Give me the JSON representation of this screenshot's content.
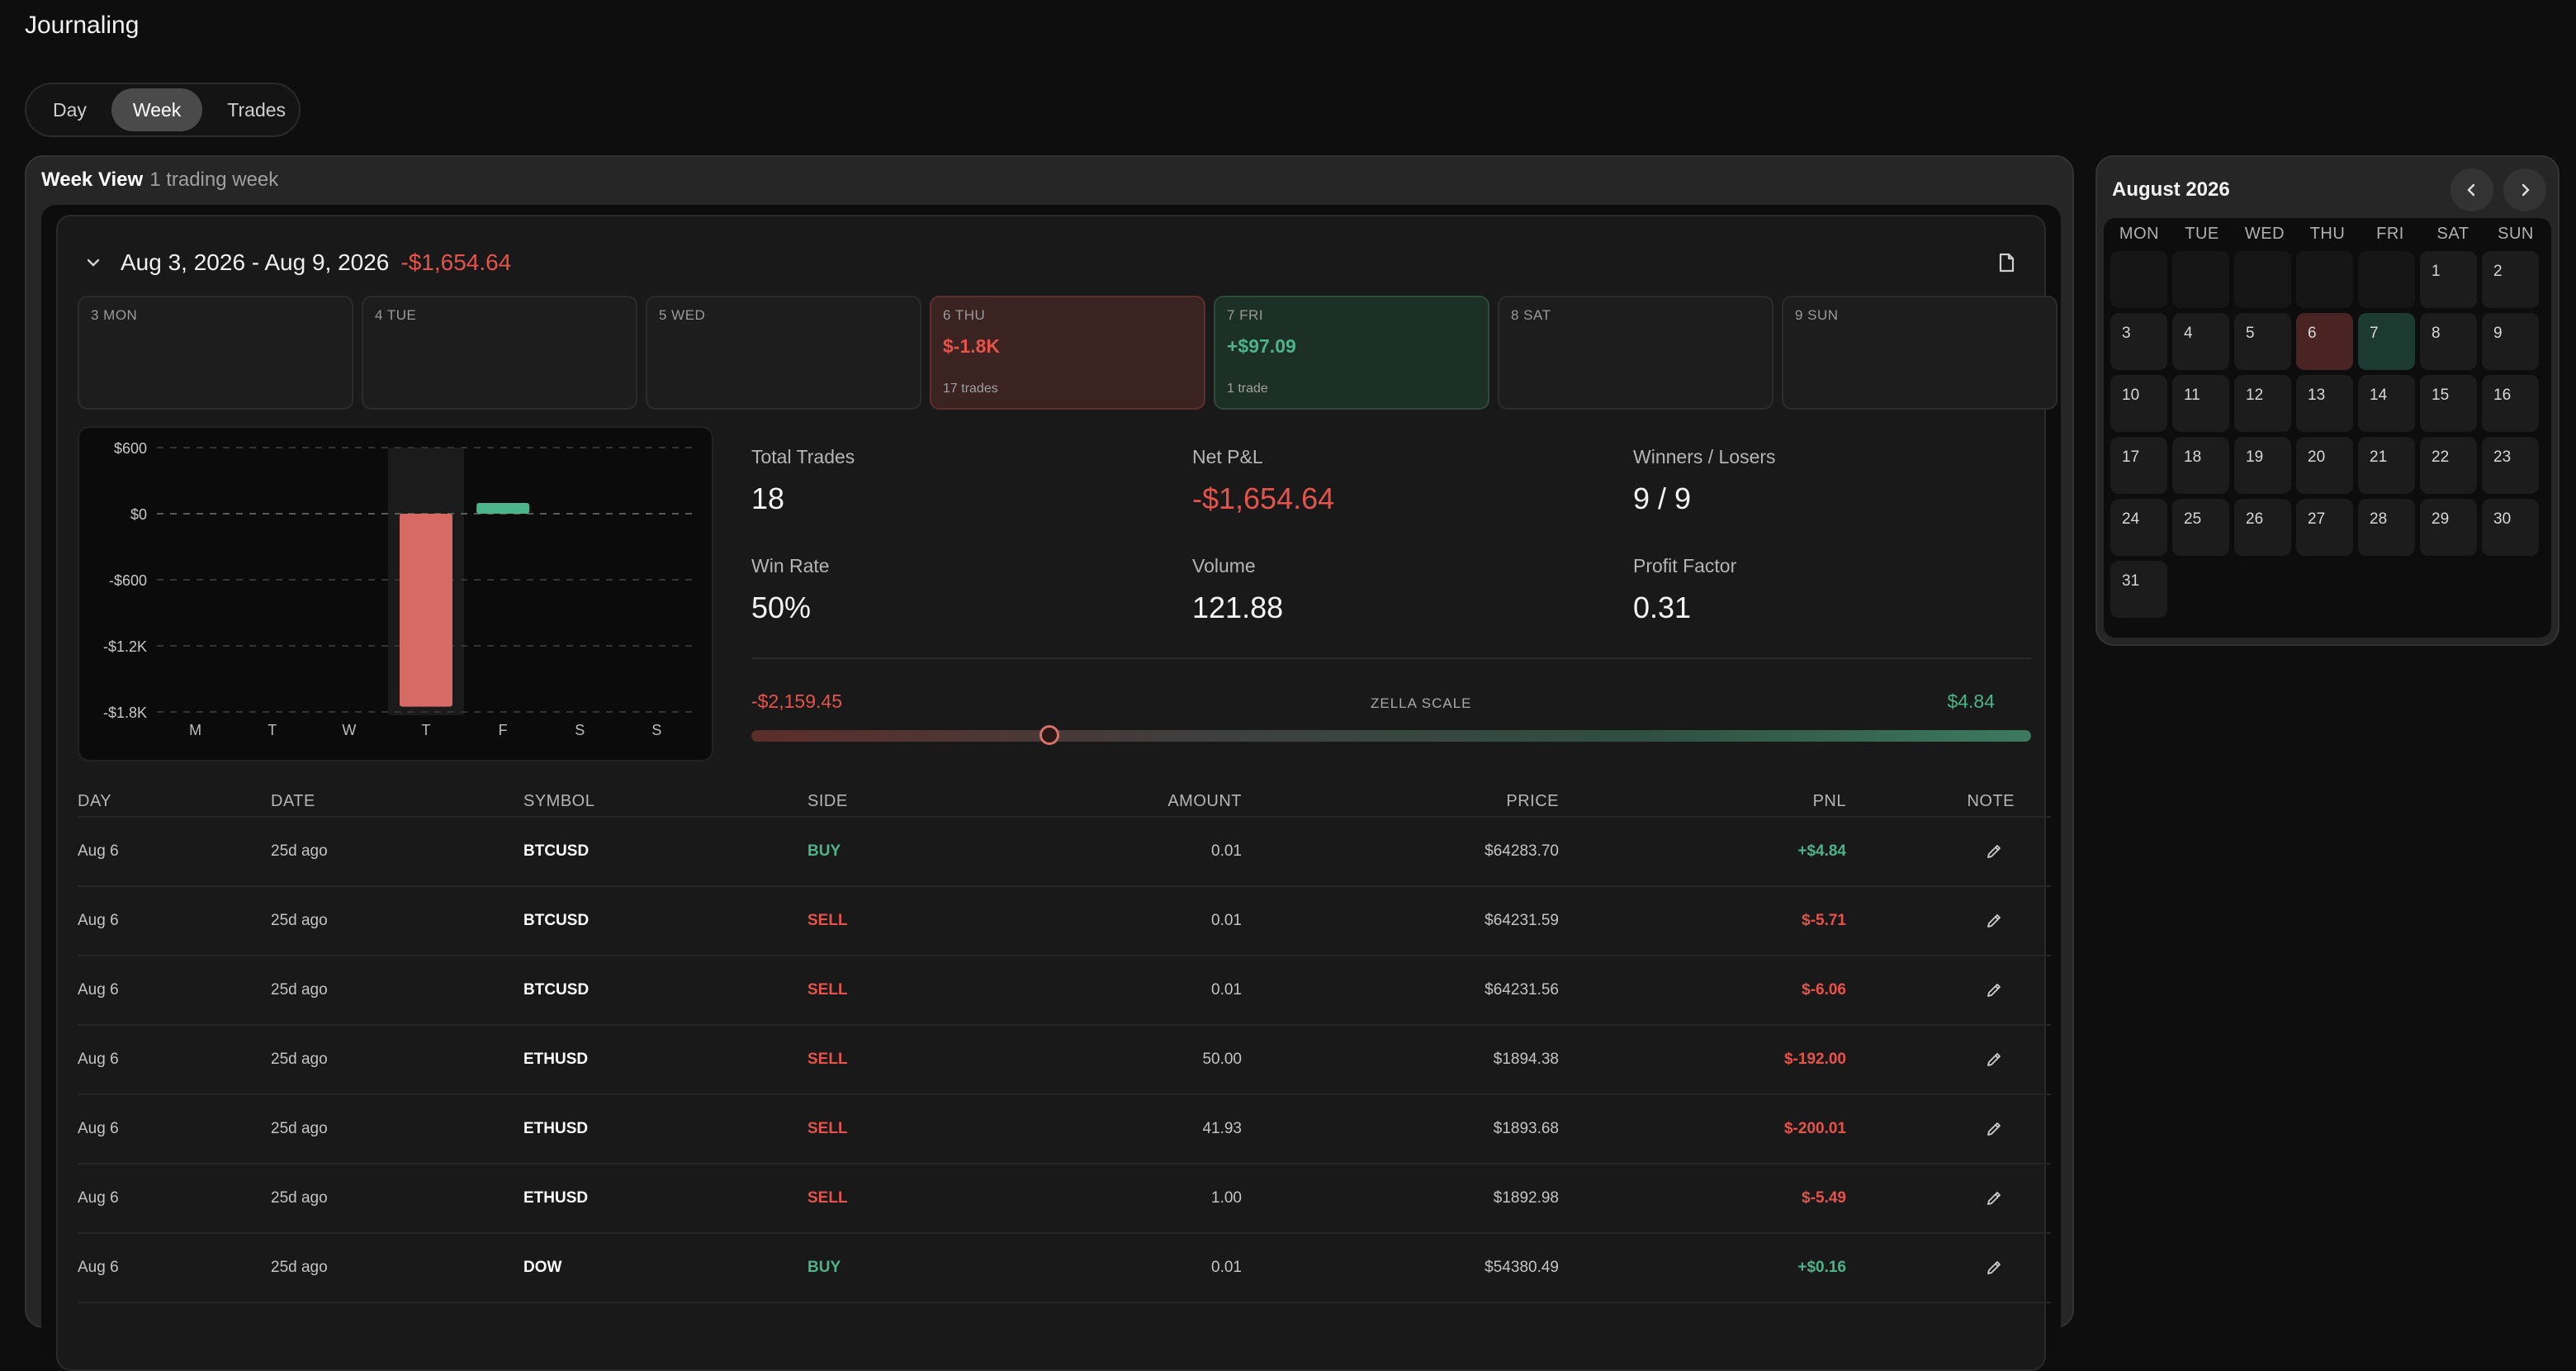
{
  "app": {
    "title": "Journaling"
  },
  "view_tabs": [
    {
      "label": "Day",
      "active": false
    },
    {
      "label": "Week",
      "active": true
    },
    {
      "label": "Trades",
      "active": false
    }
  ],
  "week_panel": {
    "title": "Week View",
    "subtitle": "1 trading week",
    "range": "Aug 3, 2026 - Aug 9, 2026",
    "range_pnl": "-$1,654.64",
    "days": [
      {
        "label": "3 MON",
        "value": "",
        "trades": "",
        "status": "none"
      },
      {
        "label": "4 TUE",
        "value": "",
        "trades": "",
        "status": "none"
      },
      {
        "label": "5 WED",
        "value": "",
        "trades": "",
        "status": "none"
      },
      {
        "label": "6 THU",
        "value": "$-1.8K",
        "trades": "17 trades",
        "status": "loss"
      },
      {
        "label": "7 FRI",
        "value": "+$97.09",
        "trades": "1 trade",
        "status": "win"
      },
      {
        "label": "8 SAT",
        "value": "",
        "trades": "",
        "status": "none"
      },
      {
        "label": "9 SUN",
        "value": "",
        "trades": "",
        "status": "none"
      }
    ]
  },
  "chart_data": {
    "type": "bar",
    "categories": [
      "M",
      "T",
      "W",
      "T",
      "F",
      "S",
      "S"
    ],
    "values": [
      0,
      0,
      0,
      -1751.73,
      97.09,
      0,
      0
    ],
    "ylim": [
      -1800,
      600
    ],
    "yticks": [
      600,
      0,
      -600,
      -1200,
      -1800
    ],
    "ytick_labels": [
      "$600",
      "$0",
      "-$600",
      "-$1.2K",
      "-$1.8K"
    ],
    "highlight_index": 3,
    "colors": {
      "pos": "#4cb38a",
      "neg": "#d86a65"
    }
  },
  "stats": {
    "total_trades": {
      "label": "Total Trades",
      "value": "18"
    },
    "net_pnl": {
      "label": "Net P&L",
      "value": "-$1,654.64"
    },
    "winners_losers": {
      "label": "Winners / Losers",
      "value": "9 / 9"
    },
    "win_rate": {
      "label": "Win Rate",
      "value": "50%"
    },
    "volume": {
      "label": "Volume",
      "value": "121.88"
    },
    "profit_factor": {
      "label": "Profit Factor",
      "value": "0.31"
    }
  },
  "zella_scale": {
    "label": "ZELLA SCALE",
    "min": "-$2,159.45",
    "max": "$4.84",
    "position_fraction": 0.233
  },
  "table": {
    "headers": [
      "DAY",
      "DATE",
      "SYMBOL",
      "SIDE",
      "AMOUNT",
      "PRICE",
      "PNL",
      "NOTE"
    ],
    "rows": [
      {
        "day": "Aug 6",
        "date": "25d ago",
        "symbol": "BTCUSD",
        "side": "BUY",
        "amount": "0.01",
        "price": "$64283.70",
        "pnl": "+$4.84"
      },
      {
        "day": "Aug 6",
        "date": "25d ago",
        "symbol": "BTCUSD",
        "side": "SELL",
        "amount": "0.01",
        "price": "$64231.59",
        "pnl": "$-5.71"
      },
      {
        "day": "Aug 6",
        "date": "25d ago",
        "symbol": "BTCUSD",
        "side": "SELL",
        "amount": "0.01",
        "price": "$64231.56",
        "pnl": "$-6.06"
      },
      {
        "day": "Aug 6",
        "date": "25d ago",
        "symbol": "ETHUSD",
        "side": "SELL",
        "amount": "50.00",
        "price": "$1894.38",
        "pnl": "$-192.00"
      },
      {
        "day": "Aug 6",
        "date": "25d ago",
        "symbol": "ETHUSD",
        "side": "SELL",
        "amount": "41.93",
        "price": "$1893.68",
        "pnl": "$-200.01"
      },
      {
        "day": "Aug 6",
        "date": "25d ago",
        "symbol": "ETHUSD",
        "side": "SELL",
        "amount": "1.00",
        "price": "$1892.98",
        "pnl": "$-5.49"
      },
      {
        "day": "Aug 6",
        "date": "25d ago",
        "symbol": "DOW",
        "side": "BUY",
        "amount": "0.01",
        "price": "$54380.49",
        "pnl": "+$0.16"
      }
    ]
  },
  "calendar": {
    "title": "August 2026",
    "weekdays": [
      "MON",
      "TUE",
      "WED",
      "THU",
      "FRI",
      "SAT",
      "SUN"
    ],
    "leading_blanks": 5,
    "days_in_month": 31,
    "loss_days": [
      6
    ],
    "win_days": [
      7
    ]
  }
}
